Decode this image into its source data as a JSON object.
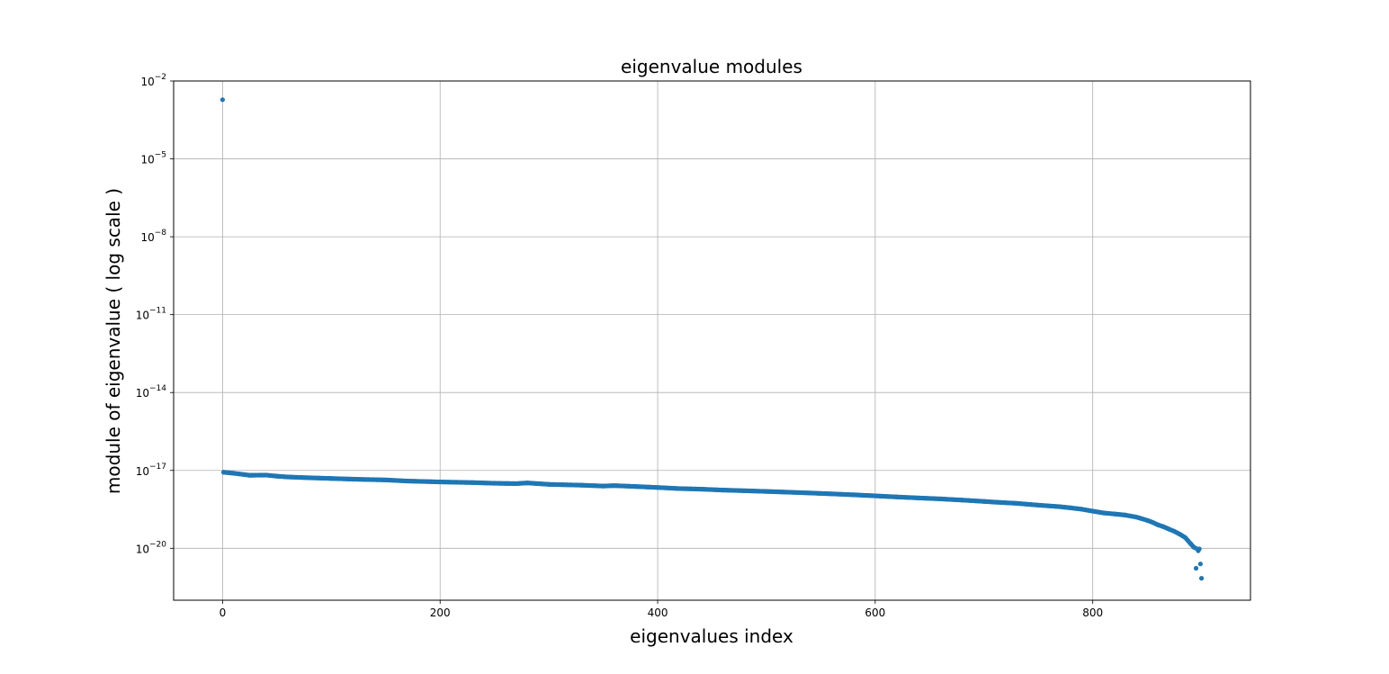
{
  "chart_data": {
    "type": "scatter",
    "title": "eigenvalue modules",
    "xlabel": "eigenvalues index",
    "ylabel": "module of eigenvalue ( log scale )",
    "xlim": [
      -45,
      945
    ],
    "ylim": [
      1e-22,
      0.01
    ],
    "yscale": "log",
    "grid": true,
    "x_ticks": [
      0,
      200,
      400,
      600,
      800
    ],
    "y_ticks": [
      {
        "base": "10",
        "exp": "−2",
        "value": 0.01
      },
      {
        "base": "10",
        "exp": "−5",
        "value": 1e-05
      },
      {
        "base": "10",
        "exp": "−8",
        "value": 1e-08
      },
      {
        "base": "10",
        "exp": "−11",
        "value": 1e-11
      },
      {
        "base": "10",
        "exp": "−14",
        "value": 1e-14
      },
      {
        "base": "10",
        "exp": "−17",
        "value": 1e-17
      },
      {
        "base": "10",
        "exp": "−20",
        "value": 1e-20
      }
    ],
    "marker_color": "#1f77b4",
    "series": [
      {
        "x": [
          0,
          1,
          10,
          25,
          40,
          50,
          60,
          80,
          100,
          120,
          150,
          170,
          200,
          230,
          250,
          270,
          280,
          300,
          330,
          350,
          360,
          380,
          400,
          420,
          440,
          460,
          480,
          500,
          520,
          540,
          560,
          580,
          600,
          620,
          640,
          660,
          680,
          700,
          710,
          730,
          750,
          770,
          780,
          790,
          800,
          810,
          820,
          830,
          840,
          850,
          855,
          860,
          865,
          870,
          875,
          880,
          885,
          890,
          893,
          895,
          897,
          899,
          900,
          895,
          898
        ],
        "y": [
          0.0019,
          8.5e-18,
          7.8e-18,
          6.5e-18,
          6.6e-18,
          6e-18,
          5.6e-18,
          5.2e-18,
          4.9e-18,
          4.6e-18,
          4.3e-18,
          3.9e-18,
          3.6e-18,
          3.4e-18,
          3.2e-18,
          3.1e-18,
          3.3e-18,
          2.9e-18,
          2.7e-18,
          2.5e-18,
          2.6e-18,
          2.4e-18,
          2.2e-18,
          2e-18,
          1.9e-18,
          1.75e-18,
          1.65e-18,
          1.55e-18,
          1.45e-18,
          1.35e-18,
          1.25e-18,
          1.15e-18,
          1.05e-18,
          9.5e-19,
          8.7e-19,
          8e-19,
          7.2e-19,
          6.4e-19,
          6e-19,
          5.4e-19,
          4.6e-19,
          4e-19,
          3.6e-19,
          3.2e-19,
          2.7e-19,
          2.3e-19,
          2.1e-19,
          1.9e-19,
          1.6e-19,
          1.2e-19,
          1e-19,
          8e-20,
          6.8e-20,
          5.5e-20,
          4.5e-20,
          3.5e-20,
          2.6e-20,
          1.5e-20,
          1.1e-20,
          1e-20,
          8e-21,
          2.5e-21,
          7e-22,
          1.7e-21,
          9.5e-21
        ]
      }
    ]
  }
}
